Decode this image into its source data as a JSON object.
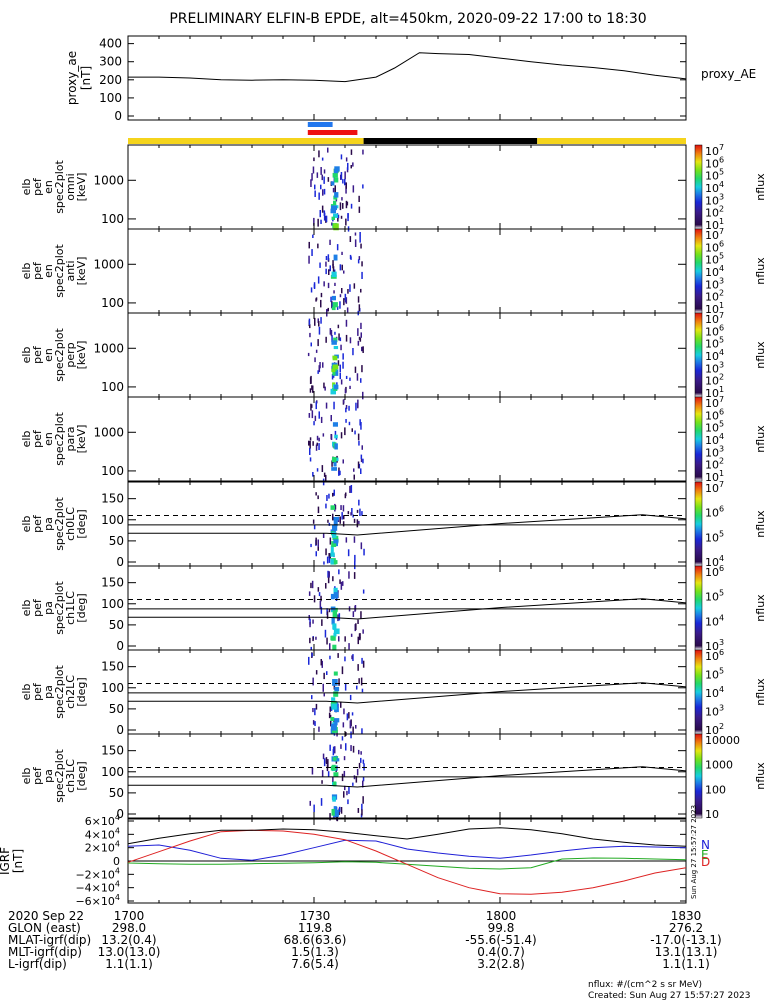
{
  "title": "PRELIMINARY ELFIN-B EPDE, alt=450km, 2020-09-22 17:00 to 18:30",
  "proxy_panel": {
    "ylabel_lines": [
      "proxy_ae",
      "[nT]"
    ],
    "right_label": "proxy_AE",
    "yticks": [
      "400",
      "300",
      "200",
      "100",
      "0"
    ]
  },
  "spec_panels": [
    {
      "ylabel_lines": [
        "elb",
        "pef",
        "en",
        "spec2plot",
        "omni",
        "[keV]"
      ],
      "yticks": [
        "1000",
        "100"
      ]
    },
    {
      "ylabel_lines": [
        "elb",
        "pef",
        "en",
        "spec2plot",
        "anti",
        "[keV]"
      ],
      "yticks": [
        "1000",
        "100"
      ]
    },
    {
      "ylabel_lines": [
        "elb",
        "pef",
        "en",
        "spec2plot",
        "perp",
        "[keV]"
      ],
      "yticks": [
        "1000",
        "100"
      ]
    },
    {
      "ylabel_lines": [
        "elb",
        "pef",
        "en",
        "spec2plot",
        "para",
        "[keV]"
      ],
      "yticks": [
        "1000",
        "100"
      ]
    },
    {
      "ylabel_lines": [
        "elb",
        "pef",
        "pa",
        "spec2plot",
        "ch0LC",
        "[deg]"
      ],
      "yticks": [
        "150",
        "100",
        "50",
        "0"
      ]
    },
    {
      "ylabel_lines": [
        "elb",
        "pef",
        "pa",
        "spec2plot",
        "ch1LC",
        "[deg]"
      ],
      "yticks": [
        "150",
        "100",
        "50",
        "0"
      ]
    },
    {
      "ylabel_lines": [
        "elb",
        "pef",
        "pa",
        "spec2plot",
        "ch2LC",
        "[deg]"
      ],
      "yticks": [
        "150",
        "100",
        "50",
        "0"
      ]
    },
    {
      "ylabel_lines": [
        "elb",
        "pef",
        "pa",
        "spec2plot",
        "ch3LC",
        "[deg]"
      ],
      "yticks": [
        "150",
        "100",
        "50",
        "0"
      ]
    }
  ],
  "colorbars": [
    {
      "label": "nflux",
      "ticks": [
        {
          "base": "10",
          "exp": "7"
        },
        {
          "base": "10",
          "exp": "6"
        },
        {
          "base": "10",
          "exp": "5"
        },
        {
          "base": "10",
          "exp": "4"
        },
        {
          "base": "10",
          "exp": "3"
        },
        {
          "base": "10",
          "exp": "2"
        },
        {
          "base": "10",
          "exp": "1"
        }
      ]
    },
    {
      "label": "nflux",
      "ticks": [
        {
          "base": "10",
          "exp": "7"
        },
        {
          "base": "10",
          "exp": "6"
        },
        {
          "base": "10",
          "exp": "5"
        },
        {
          "base": "10",
          "exp": "4"
        },
        {
          "base": "10",
          "exp": "3"
        },
        {
          "base": "10",
          "exp": "2"
        },
        {
          "base": "10",
          "exp": "1"
        }
      ]
    },
    {
      "label": "nflux",
      "ticks": [
        {
          "base": "10",
          "exp": "7"
        },
        {
          "base": "10",
          "exp": "6"
        },
        {
          "base": "10",
          "exp": "5"
        },
        {
          "base": "10",
          "exp": "4"
        },
        {
          "base": "10",
          "exp": "3"
        },
        {
          "base": "10",
          "exp": "2"
        },
        {
          "base": "10",
          "exp": "1"
        }
      ]
    },
    {
      "label": "nflux",
      "ticks": [
        {
          "base": "10",
          "exp": "7"
        },
        {
          "base": "10",
          "exp": "6"
        },
        {
          "base": "10",
          "exp": "5"
        },
        {
          "base": "10",
          "exp": "4"
        },
        {
          "base": "10",
          "exp": "3"
        },
        {
          "base": "10",
          "exp": "2"
        },
        {
          "base": "10",
          "exp": "1"
        }
      ]
    },
    {
      "label": "nflux",
      "ticks": [
        {
          "base": "10",
          "exp": "7"
        },
        {
          "base": "10",
          "exp": "6"
        },
        {
          "base": "10",
          "exp": "5"
        },
        {
          "base": "10",
          "exp": "4"
        }
      ]
    },
    {
      "label": "nflux",
      "ticks": [
        {
          "base": "10",
          "exp": "6"
        },
        {
          "base": "10",
          "exp": "5"
        },
        {
          "base": "10",
          "exp": "4"
        },
        {
          "base": "10",
          "exp": "3"
        }
      ]
    },
    {
      "label": "nflux",
      "ticks": [
        {
          "base": "10",
          "exp": "6"
        },
        {
          "base": "10",
          "exp": "5"
        },
        {
          "base": "10",
          "exp": "4"
        },
        {
          "base": "10",
          "exp": "3"
        },
        {
          "base": "10",
          "exp": "2"
        }
      ]
    },
    {
      "label": "nflux",
      "ticks": [
        {
          "base": "10000",
          "exp": ""
        },
        {
          "base": "1000",
          "exp": ""
        },
        {
          "base": "100",
          "exp": ""
        },
        {
          "base": "10",
          "exp": ""
        }
      ]
    }
  ],
  "igrf_panel": {
    "ylabel_lines": [
      "IGRF",
      "[nT]"
    ],
    "yticks": [
      {
        "mant": "6×10",
        "exp": "4"
      },
      {
        "mant": "4×10",
        "exp": "4"
      },
      {
        "mant": "2×10",
        "exp": "4"
      },
      {
        "mant": "0",
        "exp": ""
      },
      {
        "mant": "−2×10",
        "exp": "4"
      },
      {
        "mant": "−4×10",
        "exp": "4"
      },
      {
        "mant": "−6×10",
        "exp": "4"
      }
    ],
    "legend": [
      {
        "label": "N",
        "color": "#1f1fd6"
      },
      {
        "label": "E",
        "color": "#22aa22"
      },
      {
        "label": "D",
        "color": "#dd2222"
      }
    ],
    "stamp": "Sun Aug 27 15:57:27 2023"
  },
  "time_axis": {
    "row_label": "2020 Sep 22",
    "ticks": [
      "1700",
      "1730",
      "1800",
      "1830"
    ]
  },
  "ephemeris_rows": [
    {
      "label": "GLON (east)",
      "values": [
        "298.0",
        "119.8",
        "99.8",
        "276.2"
      ]
    },
    {
      "label": "MLAT-igrf(dip)",
      "values": [
        "13.2(0.4)",
        "68.6(63.6)",
        "-55.6(-51.4)",
        "-17.0(-13.1)"
      ]
    },
    {
      "label": "MLT-igrf(dip)",
      "values": [
        "13.0(13.0)",
        "1.5(1.3)",
        "0.4(0.7)",
        "13.1(13.1)"
      ]
    },
    {
      "label": "L-igrf(dip)",
      "values": [
        "1.1(1.1)",
        "7.6(5.4)",
        "3.2(2.8)",
        "1.1(1.1)"
      ]
    }
  ],
  "footer": {
    "units": "nflux: #/(cm^2 s sr MeV)",
    "created": "Created: Sun Aug 27 15:57:27 2023"
  },
  "colors": {
    "status_yellow": "#f5d41c",
    "status_black": "#000000",
    "science_red": "#ee1111",
    "science_blue": "#2277ee"
  },
  "chart_data": [
    {
      "type": "line",
      "name": "proxy_AE",
      "x_time_hhmm": [
        "17:00",
        "17:05",
        "17:10",
        "17:15",
        "17:20",
        "17:25",
        "17:30",
        "17:35",
        "17:40",
        "17:43",
        "17:47",
        "17:50",
        "17:55",
        "18:00",
        "18:05",
        "18:10",
        "18:15",
        "18:20",
        "18:25",
        "18:30"
      ],
      "values": [
        215,
        215,
        210,
        200,
        198,
        200,
        198,
        190,
        215,
        265,
        350,
        345,
        340,
        320,
        300,
        282,
        268,
        250,
        225,
        205
      ],
      "ylim": [
        0,
        420
      ]
    },
    {
      "type": "bar",
      "name": "status_bars",
      "segments": [
        {
          "series": "status",
          "color": "yellow",
          "start": "17:00",
          "end": "17:38"
        },
        {
          "series": "status",
          "color": "black",
          "start": "17:38",
          "end": "18:06"
        },
        {
          "series": "status",
          "color": "yellow",
          "start": "18:06",
          "end": "18:30"
        },
        {
          "series": "science",
          "color": "red",
          "start": "17:29",
          "end": "17:37"
        },
        {
          "series": "science",
          "color": "blue",
          "start": "17:29",
          "end": "17:33"
        }
      ]
    },
    {
      "type": "heatmap",
      "name": "energy spectrograms (omni, anti, perp, para)",
      "x_time_hhmm_range": [
        "17:29",
        "17:38"
      ],
      "y_energy_keV_range": [
        60,
        7000
      ],
      "zlim_nflux": [
        10,
        10000000
      ],
      "zscale": "log"
    },
    {
      "type": "line",
      "name": "pitch-angle loss cone references",
      "panels": [
        "ch0LC",
        "ch1LC",
        "ch2LC",
        "ch3LC"
      ],
      "dashed_deg": 110,
      "solid_deg": 88,
      "x_time_hhmm": [
        "17:00",
        "17:32",
        "17:37",
        "18:00",
        "18:23",
        "18:30"
      ],
      "lc_deg": [
        68,
        68,
        64,
        91,
        112,
        102
      ],
      "ylim": [
        0,
        180
      ]
    },
    {
      "type": "line",
      "name": "IGRF",
      "x_time_hhmm": [
        "17:00",
        "17:05",
        "17:10",
        "17:15",
        "17:20",
        "17:25",
        "17:30",
        "17:35",
        "17:40",
        "17:45",
        "17:50",
        "17:55",
        "18:00",
        "18:05",
        "18:10",
        "18:15",
        "18:20",
        "18:25",
        "18:30"
      ],
      "series": [
        {
          "name": "N",
          "values": [
            22000,
            24000,
            16000,
            4000,
            1000,
            9000,
            20000,
            31000,
            30000,
            18000,
            12000,
            7000,
            4000,
            9000,
            15000,
            20000,
            22000,
            21000,
            20000
          ]
        },
        {
          "name": "E",
          "values": [
            -3000,
            -4000,
            -5000,
            -4800,
            -4000,
            -3500,
            -2500,
            -1200,
            -2000,
            -5000,
            -8000,
            -11000,
            -12000,
            -10000,
            3000,
            4500,
            4000,
            3000,
            2000
          ]
        },
        {
          "name": "D",
          "values": [
            -2000,
            14000,
            30000,
            44000,
            46000,
            45000,
            40000,
            32000,
            15000,
            -5000,
            -25000,
            -40000,
            -49000,
            -50000,
            -47000,
            -40000,
            -30000,
            -18000,
            -10000
          ]
        },
        {
          "name": "total",
          "values": [
            26000,
            34000,
            41000,
            46000,
            46000,
            48000,
            47000,
            43000,
            38000,
            33000,
            40000,
            48000,
            50000,
            47000,
            41000,
            33000,
            28000,
            24000,
            22000
          ]
        }
      ],
      "ylim": [
        -60000,
        60000
      ]
    }
  ]
}
